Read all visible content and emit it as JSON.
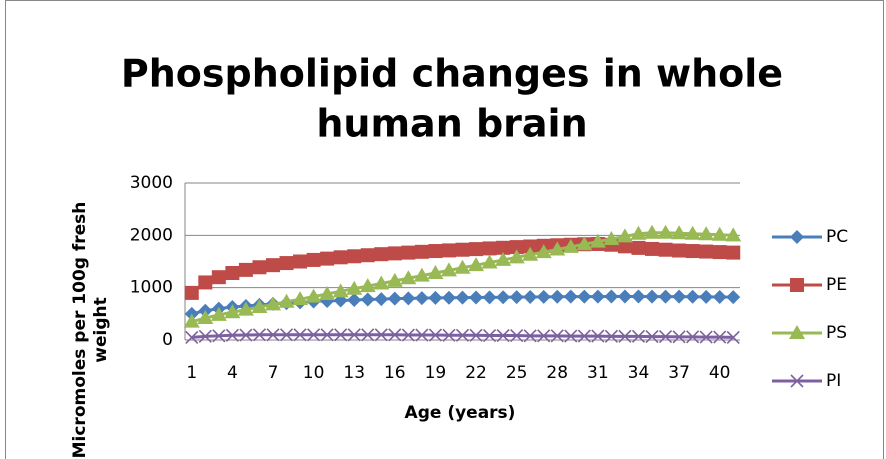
{
  "chart_data": {
    "type": "line",
    "title": [
      "Phospholipid changes in whole",
      "human brain"
    ],
    "x_label": "Age (years)",
    "y_label": [
      "Micromoles per 100g fresh",
      "weight"
    ],
    "categories": [
      "1",
      null,
      null,
      "4",
      null,
      null,
      "7",
      null,
      null,
      "10",
      null,
      null,
      "13",
      null,
      null,
      "16",
      null,
      null,
      "19",
      null,
      null,
      "22",
      null,
      null,
      "25",
      null,
      null,
      "28",
      null,
      null,
      "31",
      null,
      null,
      "34",
      null,
      null,
      "37",
      null,
      null,
      "40",
      null
    ],
    "series": [
      {
        "name": "PC",
        "color": "#4a7ebb",
        "marker": "diamond",
        "values": [
          500,
          560,
          600,
          630,
          650,
          670,
          690,
          705,
          720,
          735,
          745,
          755,
          765,
          775,
          780,
          790,
          795,
          800,
          805,
          808,
          810,
          812,
          815,
          817,
          820,
          822,
          824,
          826,
          828,
          830,
          830,
          832,
          832,
          832,
          830,
          830,
          828,
          826,
          824,
          822,
          820
        ]
      },
      {
        "name": "PE",
        "color": "#be4b48",
        "marker": "square",
        "values": [
          900,
          1100,
          1200,
          1280,
          1340,
          1390,
          1430,
          1470,
          1500,
          1530,
          1555,
          1580,
          1600,
          1620,
          1640,
          1655,
          1670,
          1685,
          1700,
          1712,
          1725,
          1737,
          1750,
          1762,
          1775,
          1787,
          1800,
          1810,
          1820,
          1830,
          1835,
          1820,
          1790,
          1760,
          1740,
          1725,
          1710,
          1700,
          1690,
          1680,
          1670
        ]
      },
      {
        "name": "PS",
        "color": "#98b954",
        "marker": "triangle",
        "values": [
          350,
          420,
          480,
          530,
          580,
          630,
          680,
          730,
          780,
          830,
          880,
          930,
          980,
          1030,
          1080,
          1130,
          1180,
          1230,
          1280,
          1330,
          1380,
          1430,
          1480,
          1530,
          1580,
          1630,
          1680,
          1730,
          1780,
          1830,
          1880,
          1930,
          1980,
          2030,
          2050,
          2050,
          2040,
          2030,
          2020,
          2010,
          2000
        ]
      },
      {
        "name": "PI",
        "color": "#7d60a0",
        "marker": "x",
        "values": [
          50,
          70,
          80,
          90,
          95,
          100,
          100,
          100,
          100,
          100,
          100,
          100,
          100,
          100,
          100,
          100,
          95,
          95,
          95,
          90,
          90,
          90,
          85,
          85,
          85,
          80,
          80,
          80,
          75,
          75,
          75,
          70,
          70,
          70,
          65,
          65,
          60,
          60,
          55,
          55,
          50
        ]
      }
    ],
    "ylim": [
      0,
      3000
    ],
    "yticks": [
      0,
      1000,
      2000,
      3000
    ],
    "grid": true,
    "legend": "right"
  }
}
